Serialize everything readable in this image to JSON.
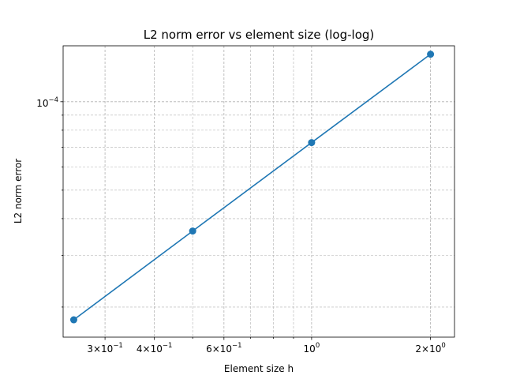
{
  "chart_data": {
    "type": "line",
    "title": "L2 norm error vs element size (log-log)",
    "xlabel": "Element size h",
    "ylabel": "L2 norm error",
    "xscale": "log",
    "yscale": "log",
    "xlim": [
      0.235,
      2.3
    ],
    "ylim": [
      1.58e-05,
      0.000155
    ],
    "grid": true,
    "series": [
      {
        "color": "#1f77b4",
        "marker": "circle",
        "x": [
          0.25,
          0.5,
          1.0,
          2.0
        ],
        "y": [
          1.81e-05,
          3.63e-05,
          7.26e-05,
          0.0001451
        ]
      }
    ],
    "x_major_ticks": [
      {
        "value": 0.3,
        "base": "3×10",
        "exp": "−1"
      },
      {
        "value": 0.4,
        "base": "4×10",
        "exp": "−1"
      },
      {
        "value": 0.6,
        "base": "6×10",
        "exp": "−1"
      },
      {
        "value": 1.0,
        "base": "10",
        "exp": "0"
      },
      {
        "value": 2.0,
        "base": "2×10",
        "exp": "0"
      }
    ],
    "y_major_ticks": [
      {
        "value": 0.0001,
        "base": "10",
        "exp": "−4"
      }
    ]
  }
}
